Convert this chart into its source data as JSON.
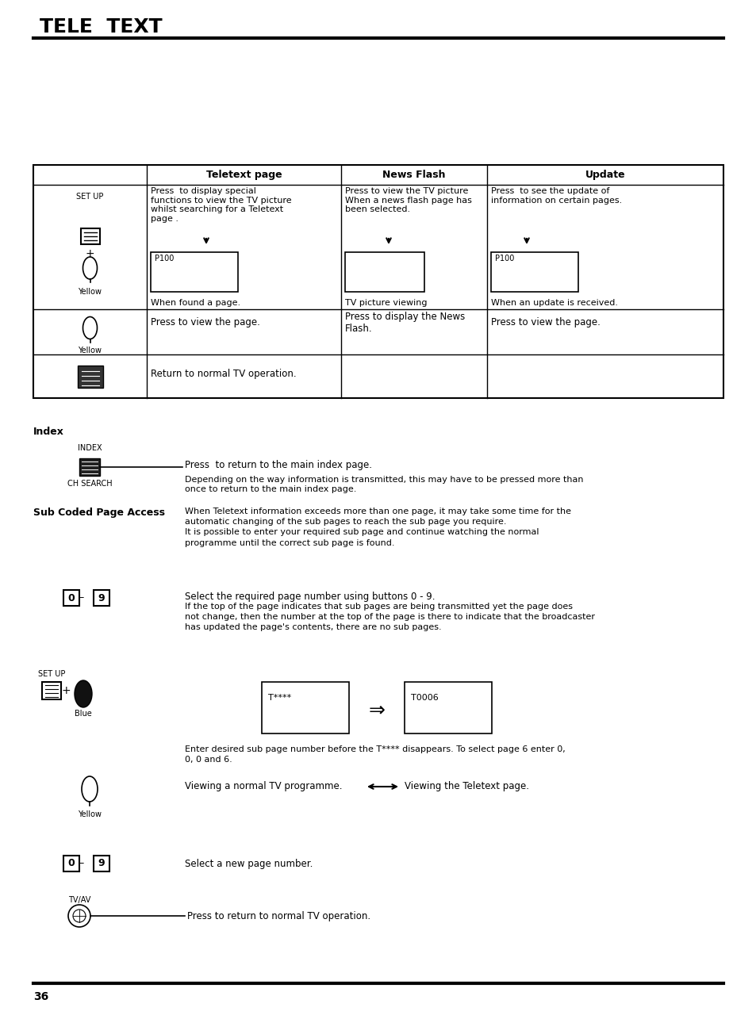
{
  "title": "TELE  TEXT",
  "page_number": "36",
  "bg_color": "#ffffff",
  "text_color": "#000000",
  "table": {
    "col_headers": [
      "",
      "Teletext page",
      "News Flash",
      "Update"
    ],
    "row1_col0_label": "SET UP\n+\nYellow",
    "row1_col1": "Press  to display special\nfunctions to view the TV picture\nwhilst searching for a Teletext\npage .",
    "row1_col2": "Press to view the TV picture\nWhen a news flash page has\nbeen selected.",
    "row1_col3": "Press  to see the update of\ninformation on certain pages.",
    "row1_col1_box": "P100",
    "row1_col3_box": "P100",
    "row1_bottom_col1": "When found a page.",
    "row1_bottom_col2": "TV picture viewing",
    "row1_bottom_col3": "When an update is received.",
    "row2_col0_label": "Yellow",
    "row2_col1": "Press to view the page.",
    "row2_col2": "Press to display the News\nFlash.",
    "row2_col3": "Press to view the page.",
    "row3_col0_label": "",
    "row3_col1": "Return to normal TV operation."
  },
  "index_section": {
    "label": "Index",
    "index_label": "INDEX",
    "ch_search_label": "CH SEARCH",
    "line1": "Press  to return to the main index page.",
    "line2": "Depending on the way information is transmitted, this may have to be pressed more than",
    "line3": "once to return to the main index page."
  },
  "sub_coded_section": {
    "label": "Sub Coded Page Access",
    "desc_line1": "When Teletext information exceeds more than one page, it may take some time for the",
    "desc_line2": "automatic changing of the sub pages to reach the sub page you require.",
    "desc_line3": "It is possible to enter your required sub page and continue watching the normal",
    "desc_line4": "programme until the correct sub page is found.",
    "btn_09_label": "[0] – [9]",
    "btn_09_line1": "Select the required page number using buttons 0 - 9.",
    "btn_09_line2": "If the top of the page indicates that sub pages are being transmitted yet the page does",
    "btn_09_line3": "not change, then the number at the top of the page is there to indicate that the broadcaster",
    "btn_09_line4": "has updated the page's contents, there are no sub pages.",
    "setup_blue_label": "SET UP\n+\nBlue",
    "tstar_label": "T****",
    "t0006_label": "T0006",
    "arrow_label": "⇒",
    "enter_line1": "Enter desired sub page number before the T**** disappears. To select page 6 enter 0,",
    "enter_line2": "0, 0 and 6.",
    "yellow_label": "Yellow",
    "view_normal": "Viewing a normal TV programme.",
    "arrow_double": "⟵⟶",
    "view_teletext": "Viewing the Teletext page.",
    "btn_09b_label": "[0] – [9]",
    "select_new": "Select a new page number.",
    "tvav_label": "TV/AV",
    "press_return": "Press to return to normal TV operation."
  }
}
